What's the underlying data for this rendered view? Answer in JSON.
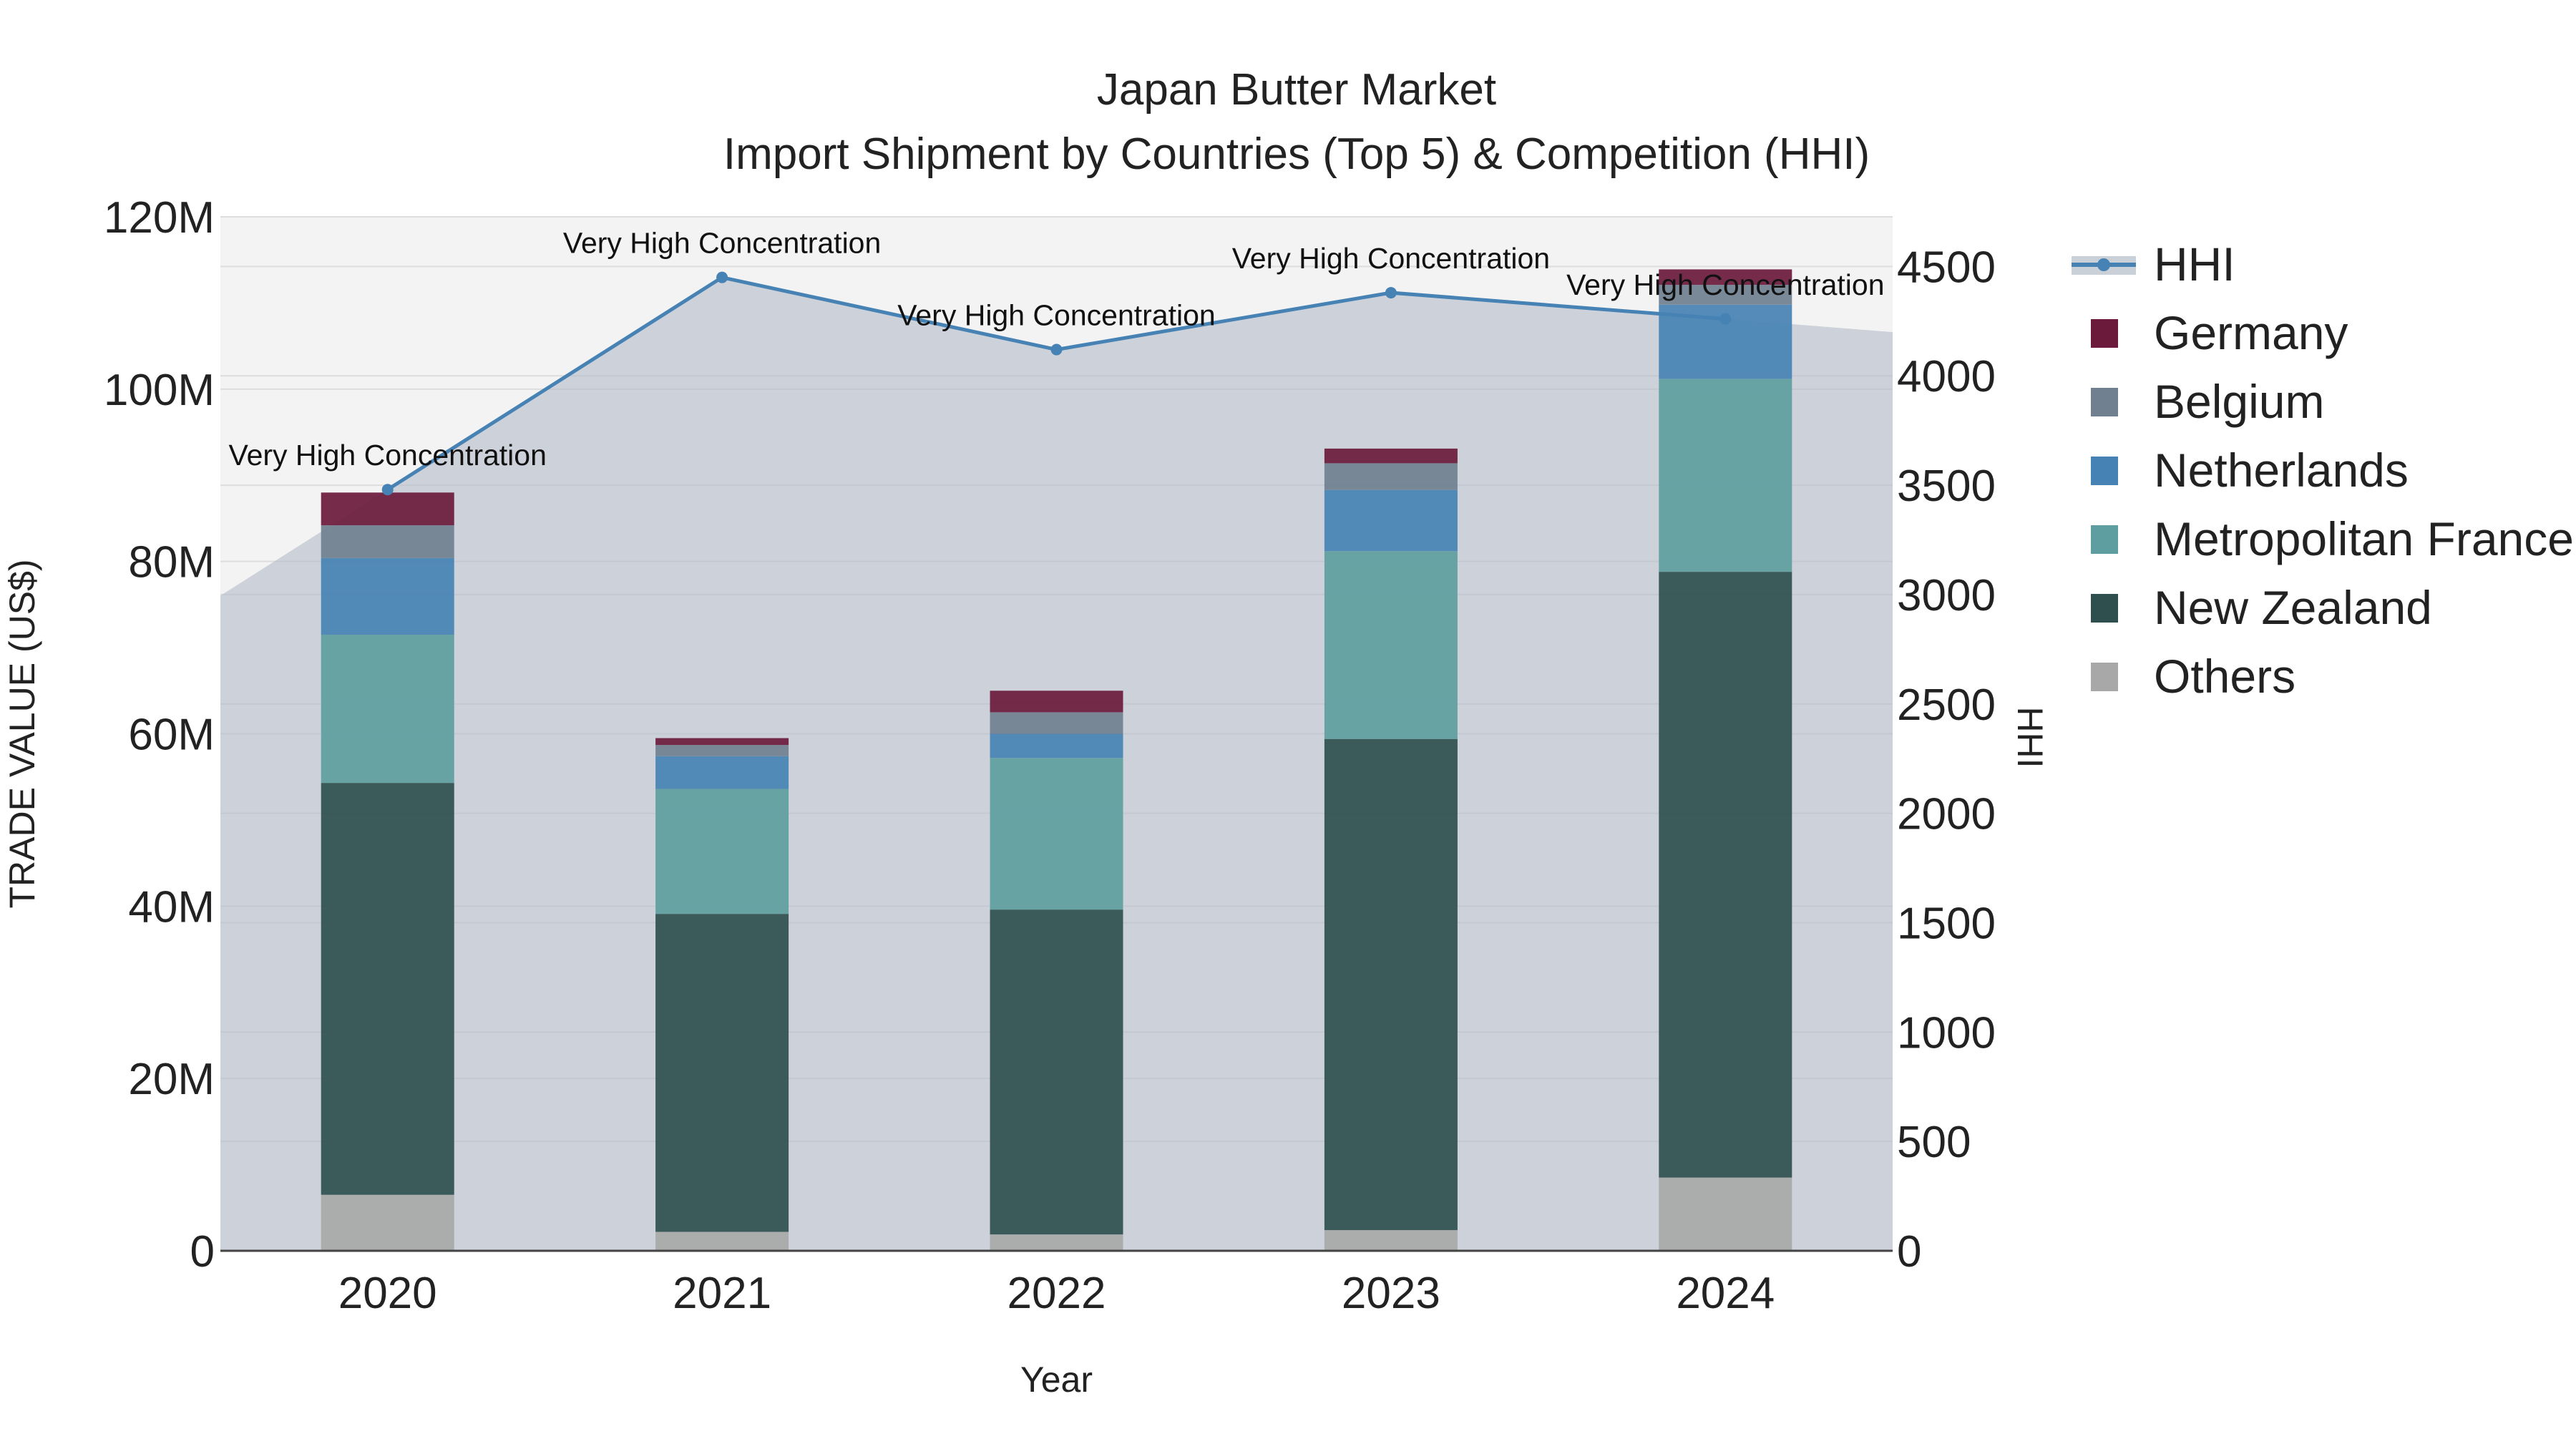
{
  "chart_data": {
    "type": "bar",
    "title": "Japan Butter Market",
    "subtitle": "Import Shipment by Countries (Top 5) & Competition (HHI)",
    "xlabel": "Year",
    "ylabel": "TRADE VALUE (US$)",
    "y2label": "HHI",
    "categories": [
      "2020",
      "2021",
      "2022",
      "2023",
      "2024"
    ],
    "ylim": [
      0,
      120000000
    ],
    "y_ticks": [
      "0",
      "20M",
      "40M",
      "60M",
      "80M",
      "100M",
      "120M"
    ],
    "y2lim": [
      0,
      4727
    ],
    "y2_ticks": [
      "0",
      "500",
      "1000",
      "1500",
      "2000",
      "2500",
      "3000",
      "3500",
      "4000",
      "4500"
    ],
    "series": [
      {
        "name": "Others",
        "color": "#a8a8a8",
        "values": [
          6500000,
          2200000,
          1900000,
          2400000,
          8500000
        ]
      },
      {
        "name": "New Zealand",
        "color": "#2f4f4f",
        "values": [
          47800000,
          36900000,
          37700000,
          57000000,
          70300000
        ]
      },
      {
        "name": "Metropolitan France",
        "color": "#5f9ea0",
        "values": [
          17200000,
          14500000,
          17600000,
          21800000,
          22400000
        ]
      },
      {
        "name": "Netherlands",
        "color": "#4682b4",
        "values": [
          8900000,
          3800000,
          2800000,
          7100000,
          8600000
        ]
      },
      {
        "name": "Belgium",
        "color": "#708090",
        "values": [
          3800000,
          1300000,
          2500000,
          3100000,
          2300000
        ]
      },
      {
        "name": "Germany",
        "color": "#6b1a3c",
        "values": [
          3800000,
          800000,
          2500000,
          1700000,
          1800000
        ]
      }
    ],
    "hhi": {
      "name": "HHI",
      "color": "#4682b4",
      "values": [
        3480,
        4450,
        4120,
        4380,
        4260
      ],
      "labels": [
        "Very High Concentration",
        "Very High Concentration",
        "Very High Concentration",
        "Very High Concentration",
        "Very High Concentration"
      ]
    },
    "legend_position": "top-right",
    "grid": true
  }
}
